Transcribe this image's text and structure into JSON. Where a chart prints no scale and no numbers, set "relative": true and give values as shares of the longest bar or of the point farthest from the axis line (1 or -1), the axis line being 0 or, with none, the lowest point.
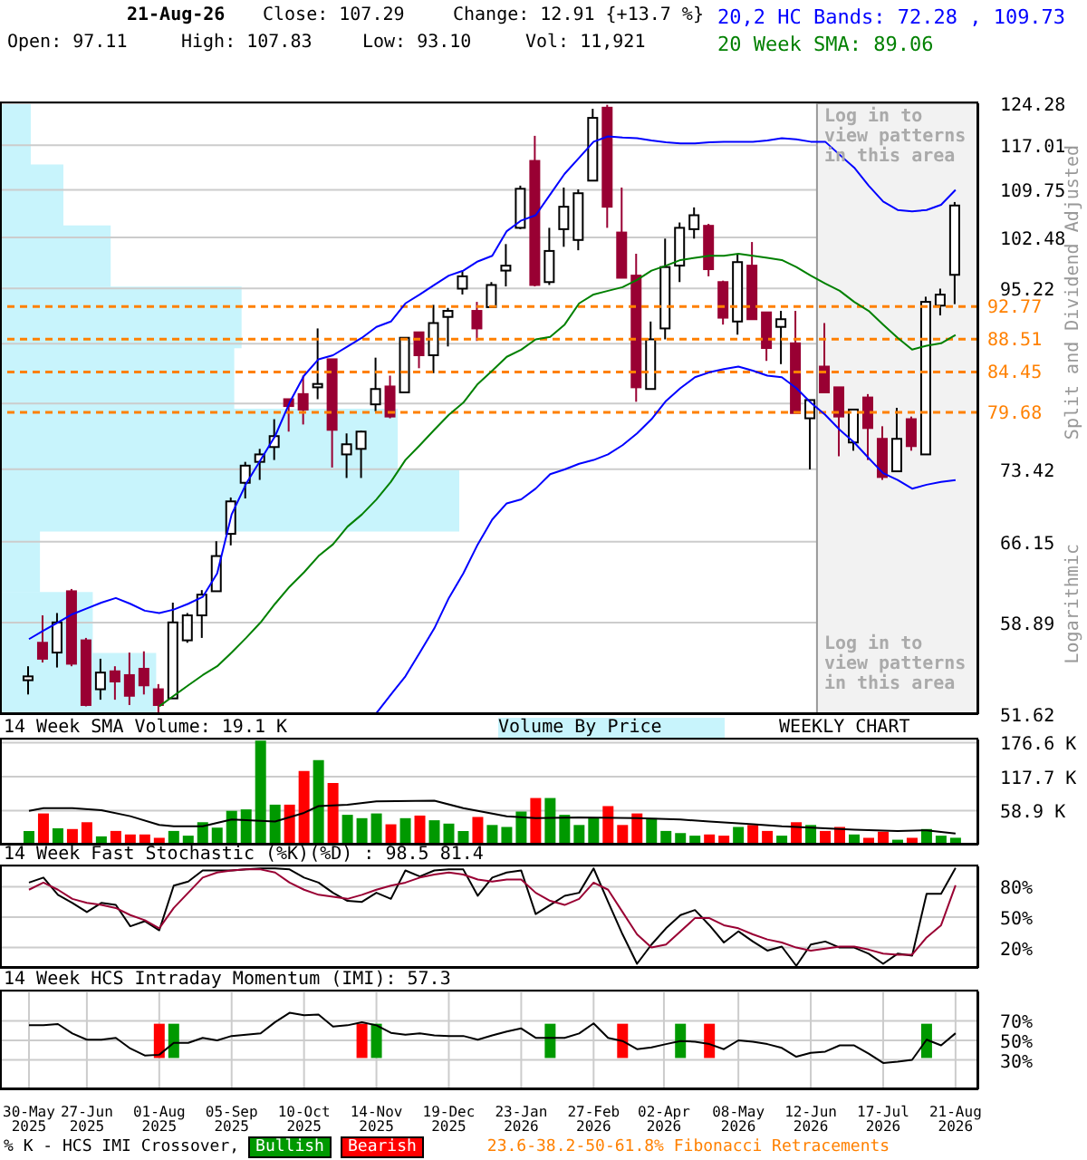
{
  "chart_data": [
    {
      "type": "candlestick",
      "x": [
        "2025-05-30",
        "2025-06-06",
        "2025-06-13",
        "2025-06-20",
        "2025-06-27",
        "2025-07-04",
        "2025-07-11",
        "2025-07-18",
        "2025-07-25",
        "2025-08-01",
        "2025-08-08",
        "2025-08-15",
        "2025-08-22",
        "2025-08-29",
        "2025-09-05",
        "2025-09-12",
        "2025-09-19",
        "2025-09-26",
        "2025-10-03",
        "2025-10-10",
        "2025-10-17",
        "2025-10-24",
        "2025-10-31",
        "2025-11-07",
        "2025-11-14",
        "2025-11-21",
        "2025-11-28",
        "2025-12-05",
        "2025-12-12",
        "2025-12-19",
        "2025-12-26",
        "2026-01-02",
        "2026-01-09",
        "2026-01-16",
        "2026-01-23",
        "2026-01-30",
        "2026-02-06",
        "2026-02-13",
        "2026-02-20",
        "2026-02-27",
        "2026-03-06",
        "2026-03-13",
        "2026-03-20",
        "2026-03-27",
        "2026-04-03",
        "2026-04-10",
        "2026-04-17",
        "2026-04-24",
        "2026-05-01",
        "2026-05-08",
        "2026-05-15",
        "2026-05-22",
        "2026-05-29",
        "2026-06-05",
        "2026-06-12",
        "2026-06-19",
        "2026-06-26",
        "2026-07-03",
        "2026-07-10",
        "2026-07-17",
        "2026-07-24",
        "2026-07-31",
        "2026-08-07",
        "2026-08-14",
        "2026-08-21"
      ],
      "ohlc": [
        [
          54.2,
          55.3,
          53.1,
          54.5
        ],
        [
          57.2,
          59.5,
          55.6,
          55.9
        ],
        [
          56.4,
          59.7,
          55.2,
          58.9
        ],
        [
          61.6,
          61.8,
          55.3,
          55.5
        ],
        [
          57.4,
          57.6,
          52.2,
          52.3
        ],
        [
          53.5,
          55.9,
          52.7,
          54.8
        ],
        [
          54.9,
          55.3,
          52.7,
          54.1
        ],
        [
          54.6,
          56.4,
          52.3,
          53.0
        ],
        [
          55.1,
          56.5,
          53.1,
          53.8
        ],
        [
          53.5,
          53.9,
          51.7,
          52.3
        ],
        [
          52.8,
          60.6,
          52.8,
          58.9
        ],
        [
          57.4,
          59.7,
          57.2,
          59.5
        ],
        [
          59.5,
          61.7,
          57.6,
          61.3
        ],
        [
          61.6,
          66.2,
          61.6,
          64.8
        ],
        [
          66.9,
          70.5,
          65.8,
          70.1
        ],
        [
          72.0,
          74.2,
          70.4,
          73.8
        ],
        [
          74.2,
          75.6,
          72.3,
          75.0
        ],
        [
          75.8,
          78.9,
          74.4,
          77.0
        ],
        [
          81.2,
          81.2,
          77.5,
          80.4
        ],
        [
          81.8,
          84.0,
          78.3,
          80.0
        ],
        [
          82.6,
          89.9,
          81.2,
          83.0
        ],
        [
          86.0,
          86.0,
          73.6,
          77.7
        ],
        [
          75.0,
          77.3,
          72.5,
          76.1
        ],
        [
          75.6,
          77.6,
          72.5,
          77.5
        ],
        [
          80.6,
          86.2,
          79.8,
          82.4
        ],
        [
          82.7,
          84.0,
          79.0,
          79.2
        ],
        [
          82.0,
          88.7,
          82.0,
          88.7
        ],
        [
          89.4,
          89.4,
          84.9,
          86.5
        ],
        [
          86.5,
          93.0,
          84.3,
          90.6
        ],
        [
          91.4,
          92.6,
          87.6,
          92.2
        ],
        [
          95.2,
          97.7,
          94.4,
          96.9
        ],
        [
          92.2,
          93.4,
          88.3,
          89.9
        ],
        [
          92.7,
          96.1,
          92.7,
          95.7
        ],
        [
          97.7,
          101.5,
          95.5,
          98.4
        ],
        [
          103.9,
          110.4,
          103.7,
          109.9
        ],
        [
          114.4,
          118.6,
          95.5,
          95.7
        ],
        [
          96.1,
          103.9,
          95.7,
          100.5
        ],
        [
          103.7,
          110.1,
          101.1,
          107.1
        ],
        [
          102.1,
          109.8,
          100.6,
          109.2
        ],
        [
          111.2,
          123.3,
          111.2,
          121.7
        ],
        [
          123.5,
          124.0,
          103.9,
          107.1
        ],
        [
          103.2,
          110.1,
          96.7,
          96.7
        ],
        [
          97.0,
          100.1,
          80.9,
          82.6
        ],
        [
          82.4,
          90.8,
          82.4,
          88.5
        ],
        [
          89.9,
          102.3,
          88.5,
          98.2
        ],
        [
          98.4,
          104.7,
          96.1,
          103.9
        ],
        [
          103.7,
          107.0,
          102.3,
          105.8
        ],
        [
          104.2,
          104.5,
          96.9,
          97.9
        ],
        [
          96.1,
          96.3,
          90.4,
          91.3
        ],
        [
          90.8,
          100.0,
          89.1,
          98.9
        ],
        [
          98.4,
          101.8,
          91.1,
          91.1
        ],
        [
          92.0,
          92.0,
          85.8,
          87.4
        ],
        [
          90.1,
          92.2,
          85.4,
          91.1
        ],
        [
          88.0,
          92.2,
          79.6,
          79.6
        ],
        [
          79.0,
          81.1,
          73.4,
          81.1
        ],
        [
          85.1,
          90.6,
          82.0,
          82.0
        ],
        [
          82.6,
          82.6,
          74.8,
          79.2
        ],
        [
          76.3,
          80.0,
          75.4,
          80.0
        ],
        [
          81.4,
          81.8,
          74.4,
          77.9
        ],
        [
          76.7,
          78.1,
          72.3,
          72.6
        ],
        [
          73.2,
          80.2,
          73.2,
          76.7
        ],
        [
          78.9,
          79.2,
          75.4,
          75.9
        ],
        [
          75.0,
          94.1,
          75.0,
          93.4
        ],
        [
          92.9,
          95.2,
          91.6,
          94.38
        ],
        [
          97.11,
          107.83,
          93.1,
          107.29
        ]
      ],
      "colors": [
        "#ffffff",
        "#990033",
        "#ffffff",
        "#990033",
        "#990033",
        "#ffffff",
        "#990033",
        "#990033",
        "#990033",
        "#990033",
        "#ffffff",
        "#ffffff",
        "#ffffff",
        "#ffffff",
        "#ffffff",
        "#ffffff",
        "#ffffff",
        "#ffffff",
        "#990033",
        "#990033",
        "#ffffff",
        "#990033",
        "#ffffff",
        "#ffffff",
        "#ffffff",
        "#990033",
        "#ffffff",
        "#990033",
        "#ffffff",
        "#ffffff",
        "#ffffff",
        "#990033",
        "#ffffff",
        "#ffffff",
        "#ffffff",
        "#990033",
        "#ffffff",
        "#ffffff",
        "#ffffff",
        "#ffffff",
        "#990033",
        "#990033",
        "#990033",
        "#ffffff",
        "#ffffff",
        "#ffffff",
        "#ffffff",
        "#990033",
        "#990033",
        "#ffffff",
        "#990033",
        "#990033",
        "#ffffff",
        "#990033",
        "#ffffff",
        "#990033",
        "#990033",
        "#ffffff",
        "#990033",
        "#990033",
        "#ffffff",
        "#990033",
        "#ffffff",
        "#ffffff",
        "#ffffff"
      ],
      "series": [
        {
          "type": "line",
          "name": "20,2 HC Bands: 72.28 , 109.73",
          "color": "#0000ff",
          "values": [
            57.5,
            58.2,
            58.9,
            59.6,
            60.1,
            60.6,
            61.0,
            60.5,
            59.9,
            59.7,
            60.0,
            60.5,
            61.1,
            63.2,
            68.8,
            71.9,
            74.4,
            77.0,
            80.8,
            84.0,
            86.0,
            86.5,
            87.6,
            88.7,
            90.1,
            90.8,
            93.2,
            94.4,
            95.7,
            97.0,
            97.7,
            99.0,
            99.8,
            103.4,
            105.0,
            105.8,
            109.0,
            112.3,
            114.9,
            117.6,
            118.5,
            118.3,
            118.2,
            117.8,
            117.5,
            117.3,
            117.3,
            117.5,
            117.6,
            117.6,
            117.6,
            117.8,
            118.2,
            118.0,
            117.6,
            117.6,
            115.4,
            113.3,
            110.4,
            107.9,
            106.6,
            106.4,
            106.6,
            107.4,
            109.73
          ]
        },
        {
          "type": "line",
          "color": "#0000ff",
          "values": [
            null,
            null,
            null,
            null,
            null,
            null,
            null,
            null,
            null,
            null,
            null,
            null,
            null,
            null,
            null,
            null,
            null,
            null,
            null,
            null,
            null,
            null,
            null,
            null,
            51.7,
            53.1,
            54.5,
            56.4,
            58.4,
            61.0,
            63.2,
            65.9,
            68.3,
            69.9,
            70.3,
            71.4,
            72.9,
            73.4,
            74.0,
            74.4,
            75.0,
            76.0,
            77.3,
            78.9,
            81.0,
            82.5,
            83.8,
            84.4,
            84.8,
            85.1,
            84.6,
            84.0,
            83.8,
            82.5,
            80.8,
            79.4,
            77.7,
            76.3,
            74.6,
            73.0,
            72.3,
            71.4,
            71.8,
            72.1,
            72.28
          ]
        },
        {
          "type": "line",
          "name": "20 Week SMA: 89.06",
          "color": "#008000",
          "values": [
            null,
            null,
            null,
            null,
            null,
            null,
            null,
            null,
            null,
            52.2,
            53.0,
            53.8,
            54.6,
            55.3,
            56.4,
            57.6,
            58.9,
            60.5,
            62.0,
            63.3,
            64.8,
            65.9,
            67.6,
            68.8,
            70.3,
            72.1,
            74.4,
            76.0,
            77.7,
            79.4,
            80.8,
            83.0,
            84.6,
            86.3,
            87.2,
            88.5,
            88.8,
            90.4,
            93.2,
            94.4,
            94.9,
            95.4,
            96.4,
            97.7,
            98.4,
            99.2,
            99.5,
            99.8,
            99.8,
            100.1,
            99.8,
            99.5,
            99.2,
            98.2,
            97.0,
            95.9,
            94.9,
            93.4,
            92.2,
            90.4,
            88.7,
            87.2,
            87.7,
            88.0,
            89.06
          ]
        }
      ],
      "xlim": [
        "2025-05-16",
        "2026-09-01"
      ],
      "xticks": [
        {
          "value": "2025-06-27",
          "label": null
        },
        {
          "value": "2025-08-01",
          "label": null
        },
        {
          "value": "2025-09-05",
          "label": null
        },
        {
          "value": "2025-10-10",
          "label": null
        },
        {
          "value": "2025-11-14",
          "label": null
        },
        {
          "value": "2025-12-19",
          "label": null
        },
        {
          "value": "2026-01-23",
          "label": null
        },
        {
          "value": "2026-02-27",
          "label": null
        },
        {
          "value": "2026-04-02",
          "label": null
        },
        {
          "value": "2026-05-08",
          "label": null
        },
        {
          "value": "2026-06-12",
          "label": null
        },
        {
          "value": "2026-07-17",
          "label": null
        },
        {
          "value": "2026-08-21",
          "label": null
        }
      ],
      "ylim": [
        51.62,
        124.28
      ],
      "yticks": [
        124.28,
        117.01,
        109.75,
        102.48,
        95.22,
        {
          "value": 87.95,
          "label": null
        },
        {
          "value": 80.69,
          "label": null
        },
        73.42,
        66.15,
        58.89,
        51.62
      ],
      "log": true,
      "grid": true,
      "tick_labels": "y",
      "legend": "top right",
      "ylabel": "Split and Dividend Adjusted",
      "ref_lines": [
        {
          "axis": "y",
          "value": 92.77,
          "label": "92.77",
          "color": "#ff8000",
          "line_style": "dashed"
        },
        {
          "axis": "y",
          "value": 88.51,
          "label": "88.51",
          "color": "#ff8000",
          "line_style": "dashed"
        },
        {
          "axis": "y",
          "value": 84.45,
          "label": "84.45",
          "color": "#ff8000",
          "line_style": "dashed"
        },
        {
          "axis": "y",
          "value": 79.68,
          "label": "79.68",
          "color": "#ff8000",
          "line_style": "dashed"
        }
      ],
      "bands": [
        {
          "axis": "x",
          "from": "2026-06-15",
          "to": "2026-09-01",
          "label": "Log in to view patterns in this area",
          "color": "#f2f2f2"
        }
      ],
      "annotations": [
        "21-Aug-26",
        "Close: 107.29",
        "Change: 12.91 {+13.7 %}",
        "Open: 97.11",
        "High: 107.83",
        "Low: 93.10",
        "Vol: 11,921",
        "Logarithmic",
        "Log in to view patterns in this area",
        "Volume By Price"
      ]
    },
    {
      "type": "bar",
      "orientation": "horizontal",
      "relative": true,
      "categories": [
        null,
        null,
        null,
        null,
        null,
        null,
        null,
        null,
        null,
        null
      ],
      "values": [
        0.067,
        0.138,
        0.241,
        0.526,
        0.51,
        0.866,
        1,
        0.087,
        0.202,
        0.34
      ],
      "color": "#c8f4fc"
    },
    {
      "type": "bar",
      "title": "14 Week SMA Volume: 19.1 K",
      "x": [
        "2025-05-30",
        "2025-06-06",
        "2025-06-13",
        "2025-06-20",
        "2025-06-27",
        "2025-07-04",
        "2025-07-11",
        "2025-07-18",
        "2025-07-25",
        "2025-08-01",
        "2025-08-08",
        "2025-08-15",
        "2025-08-22",
        "2025-08-29",
        "2025-09-05",
        "2025-09-12",
        "2025-09-19",
        "2025-09-26",
        "2025-10-03",
        "2025-10-10",
        "2025-10-17",
        "2025-10-24",
        "2025-10-31",
        "2025-11-07",
        "2025-11-14",
        "2025-11-21",
        "2025-11-28",
        "2025-12-05",
        "2025-12-12",
        "2025-12-19",
        "2025-12-26",
        "2026-01-02",
        "2026-01-09",
        "2026-01-16",
        "2026-01-23",
        "2026-01-30",
        "2026-02-06",
        "2026-02-13",
        "2026-02-20",
        "2026-02-27",
        "2026-03-06",
        "2026-03-13",
        "2026-03-20",
        "2026-03-27",
        "2026-04-03",
        "2026-04-10",
        "2026-04-17",
        "2026-04-24",
        "2026-05-01",
        "2026-05-08",
        "2026-05-15",
        "2026-05-22",
        "2026-05-29",
        "2026-06-05",
        "2026-06-12",
        "2026-06-19",
        "2026-06-26",
        "2026-07-03",
        "2026-07-10",
        "2026-07-17",
        "2026-07-24",
        "2026-07-31",
        "2026-08-07",
        "2026-08-14",
        "2026-08-21"
      ],
      "series": [
        {
          "type": "bar",
          "values": [
            23.7,
            54.0,
            28.2,
            27.0,
            38.8,
            14.3,
            23.7,
            17.6,
            17.6,
            11.8,
            23.7,
            15.5,
            38.8,
            29.4,
            58.5,
            61.0,
            179.9,
            69.2,
            69.2,
            127.4,
            146.2,
            106.5,
            51.6,
            45.8,
            54.0,
            35.2,
            45.8,
            50.3,
            42.2,
            36.4,
            23.7,
            47.9,
            34.0,
            30.6,
            57.3,
            80.7,
            80.7,
            51.6,
            34.0,
            45.8,
            66.7,
            34.0,
            54.0,
            45.8,
            23.7,
            20.0,
            15.5,
            17.6,
            15.5,
            30.6,
            34.0,
            23.7,
            15.5,
            38.8,
            34.0,
            23.7,
            30.6,
            17.6,
            11.8,
            22.4,
            8.5,
            11.8,
            27.0,
            15.5,
            11.9
          ],
          "colors": [
            "#009900",
            "#ff0000",
            "#009900",
            "#ff0000",
            "#ff0000",
            "#009900",
            "#ff0000",
            "#ff0000",
            "#ff0000",
            "#ff0000",
            "#009900",
            "#009900",
            "#009900",
            "#009900",
            "#009900",
            "#009900",
            "#009900",
            "#009900",
            "#ff0000",
            "#ff0000",
            "#009900",
            "#ff0000",
            "#009900",
            "#009900",
            "#009900",
            "#ff0000",
            "#009900",
            "#ff0000",
            "#009900",
            "#009900",
            "#009900",
            "#ff0000",
            "#009900",
            "#009900",
            "#009900",
            "#ff0000",
            "#009900",
            "#009900",
            "#009900",
            "#009900",
            "#ff0000",
            "#ff0000",
            "#ff0000",
            "#009900",
            "#009900",
            "#009900",
            "#009900",
            "#ff0000",
            "#ff0000",
            "#009900",
            "#ff0000",
            "#ff0000",
            "#009900",
            "#ff0000",
            "#009900",
            "#ff0000",
            "#ff0000",
            "#009900",
            "#ff0000",
            "#ff0000",
            "#009900",
            "#ff0000",
            "#009900",
            "#009900",
            "#009900"
          ]
        },
        {
          "type": "line",
          "color": "#000000",
          "x": [
            "2025-05-30",
            "2025-06-06",
            "2025-06-20",
            "2025-07-04",
            "2025-07-18",
            "2025-08-01",
            "2025-08-08",
            "2025-08-22",
            "2025-09-05",
            "2025-09-19",
            "2025-09-26",
            "2025-10-10",
            "2025-10-17",
            "2025-10-31",
            "2025-11-14",
            "2025-12-12",
            "2025-12-26",
            "2026-01-16",
            "2026-01-30",
            "2026-02-20",
            "2026-03-20",
            "2026-04-10",
            "2026-04-24",
            "2026-05-15",
            "2026-05-29",
            "2026-06-19",
            "2026-07-03",
            "2026-07-24",
            "2026-08-07",
            "2026-08-21"
          ],
          "values": [
            58.5,
            63.1,
            63.1,
            59.7,
            49.2,
            34.0,
            31.8,
            31.8,
            43.5,
            41.1,
            40.0,
            55.0,
            66.7,
            69.0,
            74.9,
            76.1,
            63.1,
            49.2,
            45.8,
            47.0,
            45.8,
            43.5,
            40.0,
            35.3,
            31.8,
            28.3,
            25.9,
            23.7,
            24.8,
            19.1
          ]
        }
      ],
      "xlim": [
        "2025-05-16",
        "2026-09-01"
      ],
      "xticks": [
        {
          "value": "2025-06-27",
          "label": null
        },
        {
          "value": "2025-08-01",
          "label": null
        },
        {
          "value": "2025-09-05",
          "label": null
        },
        {
          "value": "2025-10-10",
          "label": null
        },
        {
          "value": "2025-11-14",
          "label": null
        },
        {
          "value": "2025-12-19",
          "label": null
        },
        {
          "value": "2026-01-23",
          "label": null
        },
        {
          "value": "2026-02-27",
          "label": null
        },
        {
          "value": "2026-04-02",
          "label": null
        },
        {
          "value": "2026-05-08",
          "label": null
        },
        {
          "value": "2026-06-12",
          "label": null
        },
        {
          "value": "2026-07-17",
          "label": null
        },
        {
          "value": "2026-08-21",
          "label": null
        }
      ],
      "ylim": [
        0,
        182
      ],
      "yticks": [
        {
          "value": 58.9,
          "label": "58.9 K"
        },
        {
          "value": 117.7,
          "label": "117.7 K"
        },
        {
          "value": 176.6,
          "label": "176.6 K"
        }
      ],
      "grid": true,
      "tick_labels": "y",
      "annotations": [
        "WEEKLY CHART"
      ]
    },
    {
      "type": "line",
      "title": "14 Week Fast Stochastic (%K)(%D) : 98.5 81.4",
      "x": [
        "2025-05-30",
        "2025-06-06",
        "2025-06-13",
        "2025-06-20",
        "2025-06-27",
        "2025-07-04",
        "2025-07-11",
        "2025-07-18",
        "2025-07-25",
        "2025-08-01",
        "2025-08-08",
        "2025-08-15",
        "2025-08-22",
        "2025-08-29",
        "2025-09-05",
        "2025-09-12",
        "2025-09-19",
        "2025-09-26",
        "2025-10-03",
        "2025-10-10",
        "2025-10-17",
        "2025-10-24",
        "2025-10-31",
        "2025-11-07",
        "2025-11-14",
        "2025-11-21",
        "2025-11-28",
        "2025-12-05",
        "2025-12-12",
        "2025-12-19",
        "2025-12-26",
        "2026-01-02",
        "2026-01-09",
        "2026-01-16",
        "2026-01-23",
        "2026-01-30",
        "2026-02-06",
        "2026-02-13",
        "2026-02-20",
        "2026-02-27",
        "2026-03-06",
        "2026-03-13",
        "2026-03-20",
        "2026-03-27",
        "2026-04-03",
        "2026-04-10",
        "2026-04-17",
        "2026-04-24",
        "2026-05-01",
        "2026-05-08",
        "2026-05-15",
        "2026-05-22",
        "2026-05-29",
        "2026-06-05",
        "2026-06-12",
        "2026-06-19",
        "2026-06-26",
        "2026-07-03",
        "2026-07-10",
        "2026-07-17",
        "2026-07-24",
        "2026-07-31",
        "2026-08-07",
        "2026-08-14",
        "2026-08-21"
      ],
      "series": [
        {
          "color": "#000000",
          "values": [
            84,
            89,
            72,
            64,
            55,
            64,
            62,
            41,
            46,
            37,
            81,
            85,
            96,
            96,
            96,
            97,
            98,
            98,
            97,
            89,
            84,
            74,
            66,
            65,
            74,
            68,
            96,
            90,
            96,
            97,
            97,
            71,
            89,
            94,
            96,
            53,
            62,
            71,
            74,
            98,
            65,
            33,
            4,
            23,
            39,
            52,
            57,
            42,
            25,
            36,
            26,
            17,
            21,
            2,
            23,
            26,
            20,
            20,
            14,
            4,
            14,
            12,
            73,
            73,
            98.5
          ]
        },
        {
          "color": "#990033",
          "values": [
            77,
            84,
            77,
            68,
            64,
            62,
            59,
            52,
            47,
            39,
            59,
            74,
            89,
            94,
            96,
            97,
            97,
            94,
            84,
            77,
            72,
            70,
            68,
            72,
            77,
            81,
            84,
            89,
            92,
            94,
            92,
            87,
            85,
            87,
            87,
            74,
            66,
            62,
            68,
            84,
            77,
            55,
            33,
            20,
            23,
            36,
            49,
            49,
            42,
            39,
            33,
            28,
            25,
            20,
            17,
            19,
            21,
            21,
            18,
            14,
            13,
            13,
            30,
            42,
            81.4
          ]
        }
      ],
      "xlim": [
        "2025-05-16",
        "2026-09-01"
      ],
      "xticks": [
        {
          "value": "2025-06-27",
          "label": null
        },
        {
          "value": "2025-08-01",
          "label": null
        },
        {
          "value": "2025-09-05",
          "label": null
        },
        {
          "value": "2025-10-10",
          "label": null
        },
        {
          "value": "2025-11-14",
          "label": null
        },
        {
          "value": "2025-12-19",
          "label": null
        },
        {
          "value": "2026-01-23",
          "label": null
        },
        {
          "value": "2026-02-27",
          "label": null
        },
        {
          "value": "2026-04-02",
          "label": null
        },
        {
          "value": "2026-05-08",
          "label": null
        },
        {
          "value": "2026-06-12",
          "label": null
        },
        {
          "value": "2026-07-17",
          "label": null
        },
        {
          "value": "2026-08-21",
          "label": null
        }
      ],
      "ylim": [
        0,
        100
      ],
      "yticks": [
        {
          "value": 20,
          "label": "20%"
        },
        {
          "value": 50,
          "label": "50%"
        },
        {
          "value": 80,
          "label": "80%"
        }
      ],
      "grid": true,
      "tick_labels": "y"
    },
    {
      "type": "line",
      "title": "14 Week HCS Intraday Momentum (IMI): 57.3",
      "x": [
        "2025-05-30",
        "2025-06-06",
        "2025-06-13",
        "2025-06-20",
        "2025-06-27",
        "2025-07-04",
        "2025-07-11",
        "2025-07-18",
        "2025-07-25",
        "2025-08-01",
        "2025-08-08",
        "2025-08-15",
        "2025-08-22",
        "2025-08-29",
        "2025-09-05",
        "2025-09-12",
        "2025-09-19",
        "2025-09-26",
        "2025-10-03",
        "2025-10-10",
        "2025-10-17",
        "2025-10-24",
        "2025-10-31",
        "2025-11-07",
        "2025-11-14",
        "2025-11-21",
        "2025-11-28",
        "2025-12-05",
        "2025-12-12",
        "2025-12-19",
        "2025-12-26",
        "2026-01-02",
        "2026-01-09",
        "2026-01-16",
        "2026-01-23",
        "2026-01-30",
        "2026-02-06",
        "2026-02-13",
        "2026-02-20",
        "2026-02-27",
        "2026-03-06",
        "2026-03-13",
        "2026-03-20",
        "2026-03-27",
        "2026-04-03",
        "2026-04-10",
        "2026-04-17",
        "2026-04-24",
        "2026-05-01",
        "2026-05-08",
        "2026-05-15",
        "2026-05-22",
        "2026-05-29",
        "2026-06-05",
        "2026-06-12",
        "2026-06-19",
        "2026-06-26",
        "2026-07-03",
        "2026-07-10",
        "2026-07-17",
        "2026-07-24",
        "2026-07-31",
        "2026-08-07",
        "2026-08-14",
        "2026-08-21"
      ],
      "series": [
        {
          "type": "bar",
          "name": "Bullish",
          "color": "#009900",
          "values": [
            null,
            null,
            null,
            null,
            null,
            null,
            null,
            null,
            null,
            null,
            35,
            null,
            null,
            null,
            null,
            null,
            null,
            null,
            null,
            null,
            null,
            null,
            null,
            null,
            35,
            null,
            null,
            null,
            null,
            null,
            null,
            null,
            null,
            null,
            null,
            null,
            35,
            null,
            null,
            null,
            null,
            null,
            null,
            null,
            null,
            35,
            null,
            null,
            null,
            null,
            null,
            null,
            null,
            null,
            null,
            null,
            null,
            null,
            null,
            null,
            null,
            null,
            35,
            null,
            null
          ],
          "base": [
            null,
            null,
            null,
            null,
            null,
            null,
            null,
            null,
            null,
            null,
            32,
            null,
            null,
            null,
            null,
            null,
            null,
            null,
            null,
            null,
            null,
            null,
            null,
            null,
            32,
            null,
            null,
            null,
            null,
            null,
            null,
            null,
            null,
            null,
            null,
            null,
            32,
            null,
            null,
            null,
            null,
            null,
            null,
            null,
            null,
            32,
            null,
            null,
            null,
            null,
            null,
            null,
            null,
            null,
            null,
            null,
            null,
            null,
            null,
            null,
            null,
            null,
            32,
            null,
            null
          ]
        },
        {
          "type": "bar",
          "name": "Bearish",
          "color": "#ff0000",
          "values": [
            null,
            null,
            null,
            null,
            null,
            null,
            null,
            null,
            null,
            35,
            null,
            null,
            null,
            null,
            null,
            null,
            null,
            null,
            null,
            null,
            null,
            null,
            null,
            35,
            null,
            null,
            null,
            null,
            null,
            null,
            null,
            null,
            null,
            null,
            null,
            null,
            null,
            null,
            null,
            null,
            null,
            35,
            null,
            null,
            null,
            null,
            null,
            35,
            null,
            null,
            null,
            null,
            null,
            null,
            null,
            null,
            null,
            null,
            null,
            null,
            null,
            null,
            null,
            null,
            null
          ],
          "base": [
            null,
            null,
            null,
            null,
            null,
            null,
            null,
            null,
            null,
            32,
            null,
            null,
            null,
            null,
            null,
            null,
            null,
            null,
            null,
            null,
            null,
            null,
            null,
            32,
            null,
            null,
            null,
            null,
            null,
            null,
            null,
            null,
            null,
            null,
            null,
            null,
            null,
            null,
            null,
            null,
            null,
            32,
            null,
            null,
            null,
            null,
            null,
            32,
            null,
            null,
            null,
            null,
            null,
            null,
            null,
            null,
            null,
            null,
            null,
            null,
            null,
            null,
            null,
            null,
            null
          ]
        },
        {
          "type": "line",
          "color": "#000000",
          "values": [
            65.4,
            65.4,
            66.7,
            57.1,
            50.7,
            50.7,
            52.6,
            41.7,
            34.6,
            35.3,
            47.4,
            47.4,
            52.6,
            50.0,
            54.5,
            55.8,
            57.1,
            68.6,
            78.2,
            75.6,
            76.3,
            64.1,
            65.4,
            68.6,
            65.4,
            57.7,
            55.8,
            57.1,
            55.1,
            54.5,
            54.5,
            50.7,
            55.1,
            59.0,
            62.2,
            52.6,
            52.6,
            52.6,
            57.1,
            67.4,
            52.6,
            49.4,
            41.0,
            42.9,
            46.2,
            49.4,
            48.7,
            46.2,
            41.0,
            50.0,
            48.7,
            46.2,
            42.3,
            33.3,
            37.2,
            38.5,
            44.9,
            44.9,
            36.5,
            26.9,
            28.2,
            30.1,
            50.7,
            44.9,
            57.3
          ]
        }
      ],
      "xlim": [
        "2025-05-16",
        "2026-09-01"
      ],
      "xticks": [
        {
          "value": "2025-05-30",
          "label": "30-May 2025"
        },
        {
          "value": "2025-06-27",
          "label": "27-Jun 2025"
        },
        {
          "value": "2025-08-01",
          "label": "01-Aug 2025"
        },
        {
          "value": "2025-09-05",
          "label": "05-Sep 2025"
        },
        {
          "value": "2025-10-10",
          "label": "10-Oct 2025"
        },
        {
          "value": "2025-11-14",
          "label": "14-Nov 2025"
        },
        {
          "value": "2025-12-19",
          "label": "19-Dec 2025"
        },
        {
          "value": "2026-01-23",
          "label": "23-Jan 2026"
        },
        {
          "value": "2026-02-27",
          "label": "27-Feb 2026"
        },
        {
          "value": "2026-04-02",
          "label": "02-Apr 2026"
        },
        {
          "value": "2026-05-08",
          "label": "08-May 2026"
        },
        {
          "value": "2026-06-12",
          "label": "12-Jun 2026"
        },
        {
          "value": "2026-07-17",
          "label": "17-Jul 2026"
        },
        {
          "value": "2026-08-21",
          "label": "21-Aug 2026"
        }
      ],
      "ylim": [
        0,
        100
      ],
      "yticks": [
        {
          "value": 30,
          "label": "30%"
        },
        {
          "value": 50,
          "label": "50%"
        },
        {
          "value": 70,
          "label": "70%"
        }
      ],
      "grid": true,
      "legend": "bottom",
      "annotations": [
        "% K - HCS IMI Crossover,",
        "23.6-38.2-50-61.8% Fibonacci Retracements"
      ]
    }
  ]
}
